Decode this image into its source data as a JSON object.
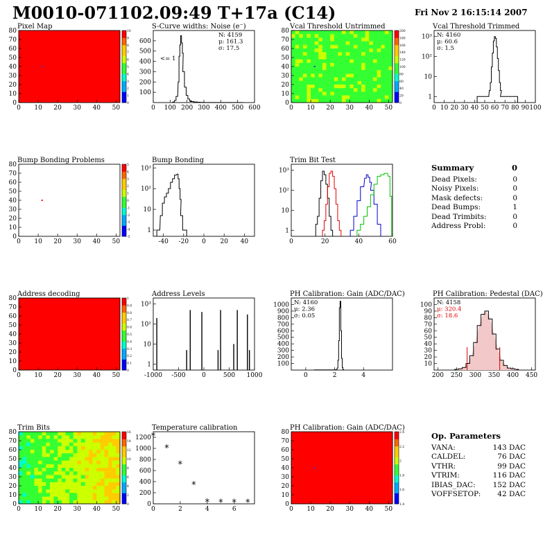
{
  "header": {
    "title": "M0010-071102.09:49 T+17a (C14)",
    "date": "Fri Nov  2 16:15:14 2007"
  },
  "colors": {
    "map_red": "#ff0000",
    "hist_line": "#000000",
    "trim_red": "#e00000",
    "trim_blue": "#0000cc",
    "trim_green": "#00c000",
    "pedestal_red": "#dd0000"
  },
  "panels": {
    "pixel_map": {
      "title": "Pixel Map"
    },
    "scurve": {
      "title": "S-Curve widths: Noise (e⁻)",
      "stats": [
        "N: 4159",
        "μ: 161.3",
        "σ: 17.5"
      ],
      "annotation": "<= 1"
    },
    "vcal_untrimmed": {
      "title": "Vcal Threshold Untrimmed"
    },
    "vcal_trimmed": {
      "title": "Vcal Threshold Trimmed",
      "stats": [
        "N: 4160",
        "μ: 60.6",
        "σ:  1.5"
      ]
    },
    "bump_problems": {
      "title": "Bump Bonding Problems"
    },
    "bump_bonding": {
      "title": "Bump Bonding"
    },
    "trim_bit_test": {
      "title": "Trim Bit Test"
    },
    "address_decoding": {
      "title": "Address decoding"
    },
    "address_levels": {
      "title": "Address Levels"
    },
    "ph_gain": {
      "title": "PH Calibration: Gain (ADC/DAC)",
      "stats": [
        "N: 4160",
        "μ: 2.36",
        "σ: 0.05"
      ]
    },
    "ph_pedestal": {
      "title": "PH Calibration: Pedestal (DAC)",
      "stats": [
        "N: 4158",
        "μ: 320.4",
        "σ: 18.6"
      ]
    },
    "trim_bits": {
      "title": "Trim Bits"
    },
    "temperature": {
      "title": "Temperature calibration"
    },
    "ph_gain_map": {
      "title": "PH Calibration: Gain (ADC/DAC)"
    }
  },
  "summary": {
    "title": "Summary",
    "title_value": "0",
    "rows": [
      {
        "label": "Dead Pixels:",
        "value": "0"
      },
      {
        "label": "Noisy Pixels:",
        "value": "0"
      },
      {
        "label": "Mask defects:",
        "value": "0"
      },
      {
        "label": "Dead Bumps:",
        "value": "1"
      },
      {
        "label": "Dead Trimbits:",
        "value": "0"
      },
      {
        "label": "Address Probl:",
        "value": "0"
      }
    ]
  },
  "op_parameters": {
    "title": "Op. Parameters",
    "rows": [
      {
        "label": "VANA:",
        "value": "143 DAC"
      },
      {
        "label": "CALDEL:",
        "value": "76 DAC"
      },
      {
        "label": "VTHR:",
        "value": "99 DAC"
      },
      {
        "label": "VTRIM:",
        "value": "116 DAC"
      },
      {
        "label": "IBIAS_DAC:",
        "value": "152 DAC"
      },
      {
        "label": "VOFFSETOP:",
        "value": "42 DAC"
      }
    ]
  },
  "chart_data": [
    {
      "id": "pixel_map",
      "type": "heatmap",
      "title": "Pixel Map",
      "xlim": [
        0,
        52
      ],
      "ylim": [
        0,
        80
      ],
      "xticks": [
        0,
        10,
        20,
        30,
        40,
        50
      ],
      "yticks": [
        0,
        10,
        20,
        30,
        40,
        50,
        60,
        70,
        80
      ],
      "fill": "uniform red",
      "zrange": [
        0,
        10
      ],
      "zticks": [
        0,
        1,
        2,
        3,
        4,
        5,
        6,
        7,
        8,
        9,
        10
      ],
      "hot_pixels": [
        {
          "x": 12,
          "y": 40
        }
      ]
    },
    {
      "id": "scurve",
      "type": "line",
      "title": "S-Curve widths: Noise (e⁻)",
      "xlim": [
        0,
        600
      ],
      "ylim": [
        0,
        700
      ],
      "xticks": [
        0,
        100,
        200,
        300,
        400,
        500,
        600
      ],
      "yticks": [
        100,
        200,
        300,
        400,
        500,
        600
      ],
      "x": [
        120,
        130,
        140,
        150,
        155,
        160,
        165,
        170,
        175,
        180,
        190,
        200,
        210,
        220,
        230,
        250,
        270,
        290,
        320,
        410,
        490
      ],
      "y": [
        5,
        20,
        60,
        200,
        450,
        560,
        650,
        580,
        480,
        300,
        150,
        70,
        35,
        18,
        10,
        6,
        3,
        2,
        1,
        1,
        1
      ]
    },
    {
      "id": "vcal_untrimmed",
      "type": "heatmap",
      "title": "Vcal Threshold Untrimmed",
      "xlim": [
        0,
        52
      ],
      "ylim": [
        0,
        80
      ],
      "xticks": [
        0,
        10,
        20,
        30,
        40,
        50
      ],
      "yticks": [
        0,
        10,
        20,
        30,
        40,
        50,
        60,
        70,
        80
      ],
      "fill": "mostly green",
      "zrange": [
        0,
        200
      ],
      "zticks": [
        0,
        20,
        40,
        60,
        80,
        100,
        120,
        140,
        160,
        180,
        200
      ],
      "hot_pixels": [
        {
          "x": 12,
          "y": 40
        }
      ]
    },
    {
      "id": "vcal_trimmed",
      "type": "line",
      "title": "Vcal Threshold Trimmed",
      "log_y": true,
      "xlim": [
        0,
        100
      ],
      "ylim": [
        0.5,
        2000
      ],
      "xticks": [
        0,
        10,
        20,
        30,
        40,
        50,
        60,
        70,
        80,
        90,
        100
      ],
      "yticks": [
        1,
        10,
        100,
        1000
      ],
      "x": [
        45,
        50,
        53,
        55,
        56,
        57,
        58,
        59,
        60,
        61,
        62,
        63,
        64,
        65,
        66,
        67,
        70,
        72,
        75,
        80
      ],
      "y": [
        1,
        1,
        1,
        2,
        5,
        30,
        150,
        600,
        1000,
        800,
        300,
        80,
        20,
        5,
        2,
        1,
        1,
        1,
        1,
        1
      ]
    },
    {
      "id": "bump_problems",
      "type": "heatmap",
      "title": "Bump Bonding Problems",
      "xlim": [
        0,
        52
      ],
      "ylim": [
        0,
        80
      ],
      "xticks": [
        0,
        10,
        20,
        30,
        40,
        50
      ],
      "yticks": [
        0,
        10,
        20,
        30,
        40,
        50,
        60,
        70,
        80
      ],
      "fill": "empty",
      "zrange": [
        -5,
        5
      ],
      "zticks": [
        -5,
        -4,
        -3,
        -2,
        -1,
        0,
        1,
        2,
        3,
        4,
        5
      ],
      "hot_pixels": [
        {
          "x": 12,
          "y": 40
        }
      ]
    },
    {
      "id": "bump_bonding",
      "type": "line",
      "title": "Bump Bonding",
      "log_y": true,
      "xlim": [
        -50,
        50
      ],
      "ylim": [
        0.5,
        1500
      ],
      "xticks": [
        -40,
        -20,
        0,
        20,
        40
      ],
      "yticks": [
        1,
        10,
        100,
        1000
      ],
      "x": [
        -45,
        -42,
        -40,
        -38,
        -36,
        -34,
        -32,
        -30,
        -28,
        -26,
        -25,
        -24,
        -23,
        -22,
        -20,
        -18
      ],
      "y": [
        1,
        5,
        20,
        40,
        60,
        100,
        200,
        300,
        450,
        500,
        300,
        100,
        30,
        5,
        1,
        1
      ]
    },
    {
      "id": "trim_bit_test",
      "type": "line",
      "title": "Trim Bit Test",
      "log_y": true,
      "xlim": [
        0,
        60
      ],
      "ylim": [
        0.5,
        2000
      ],
      "xticks": [
        0,
        20,
        40,
        60
      ],
      "yticks": [
        1,
        10,
        100,
        1000
      ],
      "series": [
        {
          "x": [
            15,
            16,
            17,
            18,
            19,
            20,
            21,
            22,
            23,
            24
          ],
          "y": [
            2,
            5,
            40,
            300,
            900,
            600,
            200,
            40,
            5,
            1
          ]
        },
        {
          "x": [
            19,
            20,
            21,
            22,
            23,
            24,
            25,
            26,
            27,
            28,
            29
          ],
          "y": [
            1,
            3,
            20,
            150,
            700,
            900,
            500,
            120,
            20,
            3,
            1
          ]
        },
        {
          "x": [
            36,
            38,
            40,
            42,
            44,
            45,
            46,
            47,
            48,
            50,
            52
          ],
          "y": [
            1,
            5,
            30,
            150,
            400,
            600,
            450,
            250,
            100,
            20,
            2
          ]
        },
        {
          "x": [
            40,
            42,
            44,
            46,
            48,
            50,
            52,
            54,
            56,
            58,
            59
          ],
          "y": [
            1,
            2,
            5,
            15,
            60,
            200,
            500,
            600,
            700,
            500,
            50
          ]
        }
      ]
    },
    {
      "id": "address_decoding",
      "type": "heatmap",
      "title": "Address decoding",
      "xlim": [
        0,
        52
      ],
      "ylim": [
        0,
        80
      ],
      "xticks": [
        0,
        10,
        20,
        30,
        40,
        50
      ],
      "yticks": [
        0,
        10,
        20,
        30,
        40,
        50,
        60,
        70,
        80
      ],
      "fill": "uniform red",
      "zrange": [
        0,
        1
      ],
      "zticks": [
        0,
        0.1,
        0.2,
        0.3,
        0.4,
        0.5,
        0.6,
        0.7,
        0.8,
        0.9,
        1
      ]
    },
    {
      "id": "address_levels",
      "type": "bar",
      "title": "Address Levels",
      "log_y": true,
      "xlim": [
        -1000,
        1000
      ],
      "ylim": [
        0.5,
        2000
      ],
      "xticks": [
        -1000,
        -500,
        0,
        500,
        1000
      ],
      "yticks": [
        1,
        10,
        100,
        1000
      ],
      "x": [
        -930,
        -340,
        -270,
        -40,
        280,
        330,
        590,
        660,
        860,
        900
      ],
      "y": [
        200,
        5,
        500,
        400,
        5,
        500,
        10,
        500,
        300,
        5
      ]
    },
    {
      "id": "ph_gain",
      "type": "line",
      "title": "PH Calibration: Gain (ADC/DAC)",
      "xlim": [
        -1,
        6
      ],
      "ylim": [
        0,
        1100
      ],
      "xticks": [
        0,
        2,
        4
      ],
      "yticks": [
        100,
        200,
        300,
        400,
        500,
        600,
        700,
        800,
        900,
        1000
      ],
      "x": [
        1.0,
        1.8,
        2.1,
        2.2,
        2.25,
        2.3,
        2.35,
        2.4,
        2.45,
        2.5,
        2.55,
        2.6
      ],
      "y": [
        2,
        2,
        5,
        30,
        150,
        450,
        950,
        1050,
        600,
        180,
        40,
        5
      ]
    },
    {
      "id": "ph_pedestal",
      "type": "line",
      "title": "PH Calibration: Pedestal (DAC)",
      "xlim": [
        190,
        460
      ],
      "ylim": [
        0,
        110
      ],
      "xticks": [
        200,
        250,
        300,
        350,
        400,
        450
      ],
      "yticks": [
        10,
        20,
        30,
        40,
        50,
        60,
        70,
        80,
        90,
        100
      ],
      "x": [
        250,
        260,
        270,
        280,
        290,
        300,
        310,
        320,
        330,
        340,
        350,
        360,
        370,
        380,
        390,
        400,
        410
      ],
      "y": [
        1,
        2,
        4,
        10,
        22,
        42,
        68,
        85,
        90,
        78,
        55,
        32,
        15,
        7,
        3,
        2,
        1
      ],
      "markers": [
        {
          "x": 278,
          "y": 35
        },
        {
          "x": 365,
          "y": 35
        }
      ]
    },
    {
      "id": "trim_bits",
      "type": "heatmap",
      "title": "Trim Bits",
      "xlim": [
        0,
        52
      ],
      "ylim": [
        0,
        80
      ],
      "xticks": [
        0,
        10,
        20,
        30,
        40,
        50
      ],
      "yticks": [
        0,
        10,
        20,
        30,
        40,
        50,
        60,
        70,
        80
      ],
      "fill": "green to yellow gradient",
      "zrange": [
        0,
        16
      ],
      "zticks": [
        0,
        2,
        4,
        6,
        8,
        10,
        12,
        14,
        16
      ]
    },
    {
      "id": "temperature",
      "type": "scatter",
      "title": "Temperature calibration",
      "xlim": [
        0,
        7.5
      ],
      "ylim": [
        0,
        1300
      ],
      "xticks": [
        0,
        2,
        4,
        6
      ],
      "yticks": [
        0,
        200,
        400,
        600,
        800,
        1000,
        1200
      ],
      "x": [
        0,
        1,
        2,
        3,
        4,
        5,
        6,
        7
      ],
      "y": [
        1230,
        1010,
        720,
        350,
        40,
        30,
        30,
        30
      ]
    },
    {
      "id": "ph_gain_map",
      "type": "heatmap",
      "title": "PH Calibration: Gain (ADC/DAC)",
      "xlim": [
        0,
        52
      ],
      "ylim": [
        0,
        80
      ],
      "xticks": [
        0,
        10,
        20,
        30,
        40,
        50
      ],
      "yticks": [
        0,
        10,
        20,
        30,
        40,
        50,
        60,
        70,
        80
      ],
      "fill": "mostly red",
      "zrange": [
        1.4,
        2.4
      ],
      "zticks": [
        1.4,
        1.6,
        1.8,
        2,
        2.2,
        2.4
      ],
      "hot_pixels": [
        {
          "x": 12,
          "y": 40
        }
      ]
    }
  ]
}
